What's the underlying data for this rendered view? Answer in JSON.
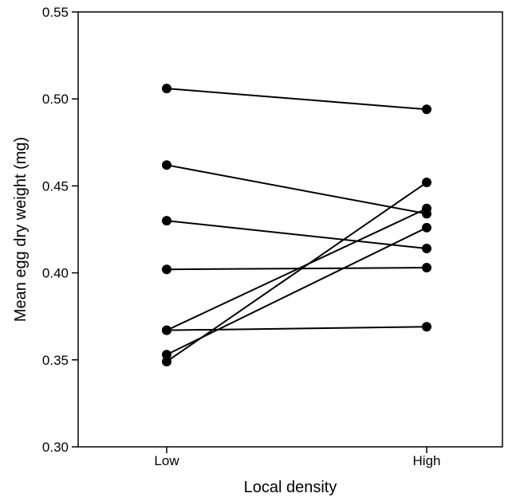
{
  "chart_data": {
    "type": "line",
    "title": "",
    "xlabel": "Local density",
    "ylabel": "Mean egg dry weight (mg)",
    "categories": [
      "Low",
      "High"
    ],
    "ylim": [
      0.3,
      0.55
    ],
    "yticks": [
      "0.30",
      "0.35",
      "0.40",
      "0.45",
      "0.50",
      "0.55"
    ],
    "grid": false,
    "legend": "none",
    "series": [
      {
        "values": [
          0.506,
          0.494
        ]
      },
      {
        "values": [
          0.462,
          0.434
        ]
      },
      {
        "values": [
          0.43,
          0.414
        ]
      },
      {
        "values": [
          0.402,
          0.403
        ]
      },
      {
        "values": [
          0.367,
          0.437
        ]
      },
      {
        "values": [
          0.367,
          0.369
        ]
      },
      {
        "values": [
          0.353,
          0.426
        ]
      },
      {
        "values": [
          0.349,
          0.452
        ]
      }
    ],
    "colors": {
      "line": "#000000",
      "marker": "#000000"
    }
  }
}
